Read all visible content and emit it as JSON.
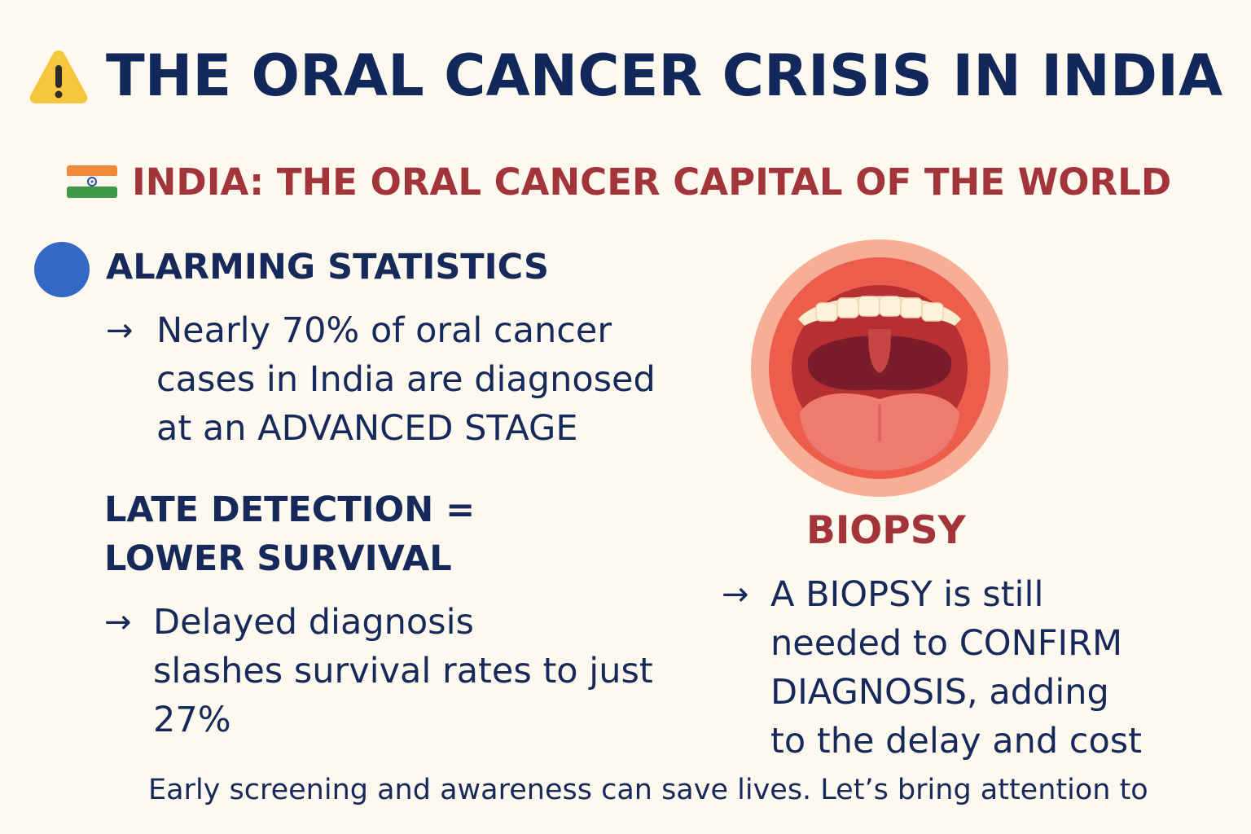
{
  "header": {
    "title": "THE ORAL CANCER CRISIS IN INDIA",
    "title_icon": "warning-icon"
  },
  "subtitle": {
    "text": "INDIA: THE ORAL CANCER CAPITAL OF THE WORLD",
    "icon": "india-flag-icon"
  },
  "stats": {
    "heading": "ALARMING STATISTICS",
    "icon": "blue-circle-icon",
    "arrow": "→",
    "lines": [
      "Nearly 70% of oral cancer",
      "cases in India are diagnosed",
      "at an ADVANCED STAGE"
    ]
  },
  "late": {
    "heading_lines": [
      "LATE DETECTION =",
      "LOWER SURVIVAL"
    ],
    "arrow": "→",
    "lines": [
      "Delayed diagnosis",
      "slashes survival rates to just",
      "27%"
    ]
  },
  "biopsy": {
    "image_icon": "open-mouth-icon",
    "label": "BIOPSY",
    "arrow": "→",
    "lines": [
      "A BIOPSY is still",
      "needed to CONFIRM",
      "DIAGNOSIS, adding",
      "to the delay and cost"
    ]
  },
  "footer": {
    "text": "Early screening and awareness can save lives. Let’s bring attention to"
  },
  "colors": {
    "background": "#fdf9ef",
    "navy": "#13285a",
    "red": "#a3343a",
    "blue": "#3468c5"
  }
}
